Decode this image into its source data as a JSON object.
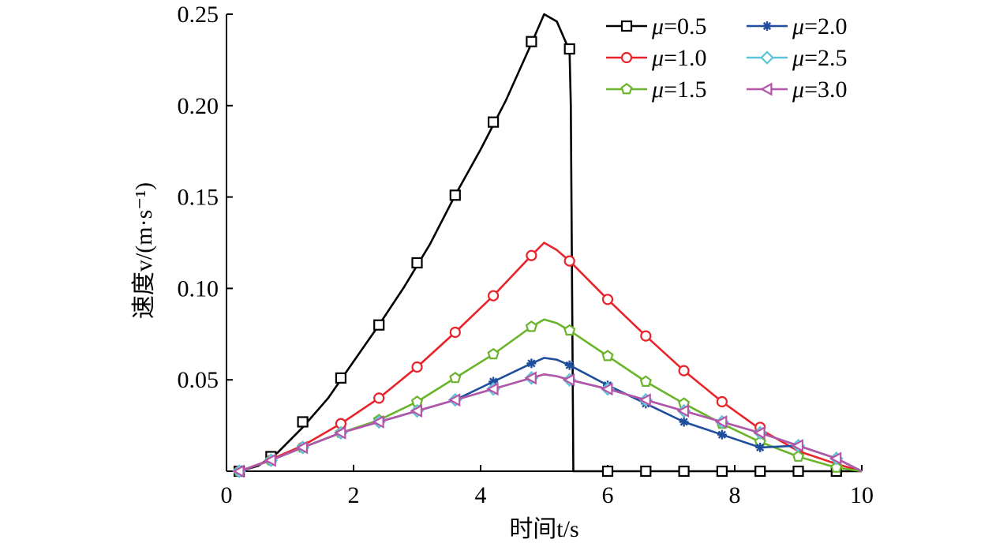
{
  "chart_data": {
    "type": "line",
    "xlabel": "时间t/s",
    "ylabel": "速度v/(m·s⁻¹)",
    "xlim": [
      0,
      10
    ],
    "ylim": [
      0,
      0.25
    ],
    "x_ticks": [
      0,
      2,
      4,
      6,
      8,
      10
    ],
    "x_tick_labels": [
      "0",
      "2",
      "4",
      "6",
      "8",
      "10"
    ],
    "y_ticks": [
      0.05,
      0.1,
      0.15,
      0.2,
      0.25
    ],
    "y_tick_labels": [
      "0.05",
      "0.10",
      "0.15",
      "0.20",
      "0.25"
    ],
    "grid": false,
    "legend": {
      "placement": "top-right",
      "columns": 2
    },
    "series": [
      {
        "name": "μ=0.5",
        "label_symbol": "μ",
        "label_value": "=0.5",
        "color": "#000000",
        "marker": "square",
        "x": [
          0.2,
          0.5,
          0.8,
          1.2,
          1.6,
          2.0,
          2.4,
          2.8,
          3.2,
          3.6,
          4.0,
          4.4,
          4.8,
          5.0,
          5.2,
          5.4,
          5.42,
          5.44,
          5.46,
          6.0,
          7.0,
          8.0,
          9.0,
          10.0
        ],
        "y": [
          0.0,
          0.003,
          0.01,
          0.024,
          0.04,
          0.06,
          0.08,
          0.101,
          0.124,
          0.151,
          0.176,
          0.203,
          0.234,
          0.25,
          0.246,
          0.23,
          0.2,
          0.1,
          0.0,
          0.0,
          0.0,
          0.0,
          0.0,
          0.0
        ],
        "marker_x": [
          0.2,
          0.7,
          1.2,
          1.8,
          2.4,
          3.0,
          3.6,
          4.2,
          4.8,
          5.4,
          6.0,
          6.6,
          7.2,
          7.8,
          8.4,
          9.0,
          9.6
        ],
        "marker_y": [
          0.0,
          0.008,
          0.027,
          0.051,
          0.08,
          0.114,
          0.151,
          0.191,
          0.235,
          0.231,
          0.0,
          0.0,
          0.0,
          0.0,
          0.0,
          0.0,
          0.0
        ]
      },
      {
        "name": "μ=1.0",
        "label_symbol": "μ",
        "label_value": "=1.0",
        "color": "#e8242a",
        "marker": "circle",
        "x": [
          0.2,
          0.6,
          1.2,
          1.8,
          2.4,
          3.0,
          3.6,
          4.2,
          4.8,
          5.0,
          5.2,
          5.4,
          6.0,
          6.6,
          7.2,
          7.8,
          8.4,
          9.0,
          9.6,
          10.0
        ],
        "y": [
          0.0,
          0.005,
          0.014,
          0.026,
          0.04,
          0.057,
          0.076,
          0.096,
          0.118,
          0.125,
          0.121,
          0.115,
          0.094,
          0.074,
          0.055,
          0.038,
          0.023,
          0.011,
          0.004,
          0.0
        ],
        "marker_x": [
          0.2,
          0.7,
          1.2,
          1.8,
          2.4,
          3.0,
          3.6,
          4.2,
          4.8,
          5.4,
          6.0,
          6.6,
          7.2,
          7.8,
          8.4
        ],
        "marker_y": [
          0.0,
          0.006,
          0.013,
          0.026,
          0.04,
          0.057,
          0.076,
          0.096,
          0.118,
          0.115,
          0.094,
          0.074,
          0.055,
          0.038,
          0.024
        ]
      },
      {
        "name": "μ=1.5",
        "label_symbol": "μ",
        "label_value": "=1.5",
        "color": "#6ab42c",
        "marker": "pentagon",
        "x": [
          0.2,
          0.7,
          1.2,
          1.8,
          2.4,
          3.0,
          3.6,
          4.2,
          4.8,
          5.0,
          5.2,
          5.4,
          6.0,
          6.6,
          7.2,
          7.8,
          8.4,
          9.0,
          9.6,
          10.0
        ],
        "y": [
          0.0,
          0.006,
          0.013,
          0.021,
          0.028,
          0.038,
          0.051,
          0.064,
          0.079,
          0.083,
          0.081,
          0.077,
          0.063,
          0.049,
          0.037,
          0.026,
          0.016,
          0.008,
          0.002,
          0.0
        ],
        "marker_x": [
          0.2,
          0.7,
          1.2,
          1.8,
          2.4,
          3.0,
          3.6,
          4.2,
          4.8,
          5.4,
          6.0,
          6.6,
          7.2,
          7.8,
          8.4,
          9.0,
          9.6
        ],
        "marker_y": [
          0.0,
          0.006,
          0.013,
          0.021,
          0.028,
          0.038,
          0.051,
          0.064,
          0.079,
          0.077,
          0.063,
          0.049,
          0.037,
          0.026,
          0.016,
          0.008,
          0.002
        ]
      },
      {
        "name": "μ=2.0",
        "label_symbol": "μ",
        "label_value": "=2.0",
        "color": "#1f4e9c",
        "marker": "star",
        "x": [
          0.2,
          0.7,
          1.2,
          1.8,
          2.4,
          3.0,
          3.6,
          4.2,
          4.8,
          5.0,
          5.2,
          5.4,
          6.0,
          6.6,
          7.2,
          7.8,
          8.4,
          9.0,
          9.6,
          10.0
        ],
        "y": [
          0.0,
          0.006,
          0.013,
          0.021,
          0.027,
          0.033,
          0.039,
          0.049,
          0.059,
          0.062,
          0.061,
          0.058,
          0.047,
          0.037,
          0.027,
          0.02,
          0.013,
          0.014,
          0.007,
          0.0
        ],
        "marker_x": [
          0.2,
          0.7,
          1.2,
          1.8,
          2.4,
          3.0,
          3.6,
          4.2,
          4.8,
          5.4,
          6.0,
          6.6,
          7.2,
          7.8,
          8.4,
          9.0,
          9.6
        ],
        "marker_y": [
          0.0,
          0.006,
          0.013,
          0.021,
          0.027,
          0.033,
          0.039,
          0.049,
          0.059,
          0.058,
          0.047,
          0.037,
          0.027,
          0.02,
          0.013,
          0.014,
          0.007
        ]
      },
      {
        "name": "μ=2.5",
        "label_symbol": "μ",
        "label_value": "=2.5",
        "color": "#5bc5d8",
        "marker": "diamond",
        "x": [
          0.2,
          0.7,
          1.2,
          1.8,
          2.4,
          3.0,
          3.6,
          4.2,
          4.8,
          5.0,
          5.2,
          5.4,
          6.0,
          6.6,
          7.2,
          7.8,
          8.4,
          9.0,
          9.6,
          10.0
        ],
        "y": [
          0.0,
          0.006,
          0.013,
          0.021,
          0.027,
          0.033,
          0.039,
          0.045,
          0.051,
          0.053,
          0.052,
          0.05,
          0.045,
          0.039,
          0.033,
          0.027,
          0.021,
          0.014,
          0.007,
          0.0
        ],
        "marker_x": [
          0.2,
          0.7,
          1.2,
          1.8,
          2.4,
          3.0,
          3.6,
          4.2,
          4.8,
          5.4,
          6.0,
          6.6,
          7.2,
          7.8,
          8.4,
          9.0,
          9.6
        ],
        "marker_y": [
          0.0,
          0.006,
          0.013,
          0.021,
          0.027,
          0.033,
          0.039,
          0.045,
          0.051,
          0.05,
          0.045,
          0.039,
          0.033,
          0.027,
          0.021,
          0.014,
          0.007
        ]
      },
      {
        "name": "μ=3.0",
        "label_symbol": "μ",
        "label_value": "=3.0",
        "color": "#b455a8",
        "marker": "triangle-left",
        "x": [
          0.2,
          0.7,
          1.2,
          1.8,
          2.4,
          3.0,
          3.6,
          4.2,
          4.8,
          5.0,
          5.2,
          5.4,
          6.0,
          6.6,
          7.2,
          7.8,
          8.4,
          9.0,
          9.6,
          10.0
        ],
        "y": [
          0.0,
          0.006,
          0.013,
          0.021,
          0.027,
          0.033,
          0.039,
          0.045,
          0.051,
          0.053,
          0.052,
          0.05,
          0.045,
          0.039,
          0.033,
          0.027,
          0.021,
          0.014,
          0.007,
          0.0
        ],
        "marker_x": [
          0.2,
          0.7,
          1.2,
          1.8,
          2.4,
          3.0,
          3.6,
          4.2,
          4.8,
          5.4,
          6.0,
          6.6,
          7.2,
          7.8,
          8.4,
          9.0,
          9.6
        ],
        "marker_y": [
          0.0,
          0.006,
          0.013,
          0.021,
          0.027,
          0.033,
          0.039,
          0.045,
          0.051,
          0.05,
          0.045,
          0.039,
          0.033,
          0.027,
          0.021,
          0.014,
          0.007
        ]
      }
    ]
  }
}
